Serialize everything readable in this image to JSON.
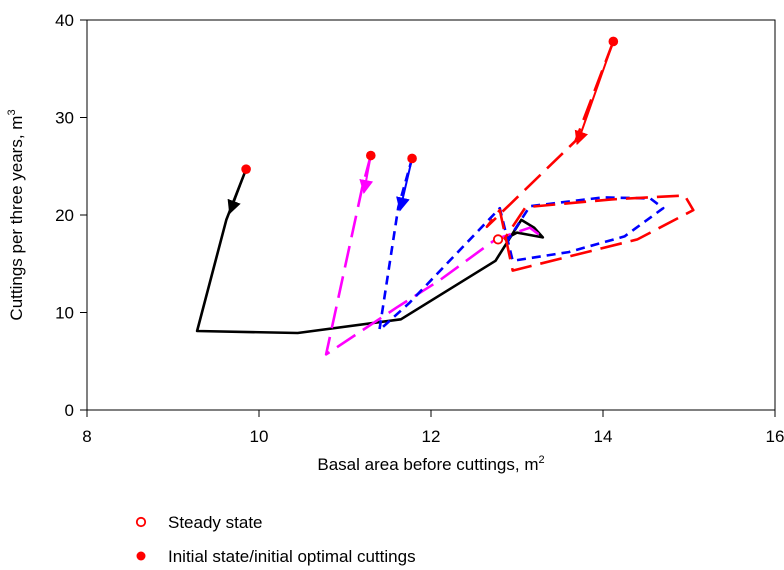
{
  "chart_data": {
    "type": "line",
    "title": "",
    "xlabel": "Basal area before cuttings, m",
    "xlabel_sup": "2",
    "ylabel": "Cuttings per three years, m",
    "ylabel_sup": "3",
    "xlim": [
      8,
      16
    ],
    "ylim": [
      0,
      40
    ],
    "x_ticks": [
      8,
      10,
      12,
      14,
      16
    ],
    "y_ticks": [
      0,
      10,
      20,
      30,
      40
    ],
    "grid": false,
    "legend_placement": "bottom-left",
    "series": [
      {
        "color": "#000000",
        "dash": "solid",
        "points": [
          [
            9.85,
            24.7
          ],
          [
            9.62,
            19.5
          ],
          [
            9.28,
            8.1
          ],
          [
            10.45,
            7.9
          ],
          [
            11.65,
            9.3
          ],
          [
            12.75,
            15.3
          ],
          [
            13.05,
            19.5
          ],
          [
            13.2,
            18.7
          ],
          [
            13.3,
            17.7
          ],
          [
            13.0,
            18.2
          ],
          [
            12.85,
            17.5
          ]
        ],
        "arrows": [
          [
            [
              9.85,
              24.7
            ],
            [
              9.66,
              20.2
            ]
          ]
        ]
      },
      {
        "color": "#ff00ff",
        "dash": "long",
        "points": [
          [
            11.3,
            26.1
          ],
          [
            11.2,
            22.8
          ],
          [
            10.78,
            5.7
          ],
          [
            11.6,
            10.5
          ],
          [
            12.1,
            13.3
          ],
          [
            12.75,
            17.5
          ],
          [
            13.15,
            18.7
          ],
          [
            13.3,
            17.7
          ]
        ],
        "arrows": [
          [
            [
              11.3,
              26.1
            ],
            [
              11.22,
              22.3
            ]
          ]
        ]
      },
      {
        "color": "#0000ff",
        "dash": "short",
        "points": [
          [
            11.78,
            25.8
          ],
          [
            11.62,
            20.8
          ],
          [
            11.4,
            8.2
          ],
          [
            11.75,
            11.0
          ],
          [
            12.8,
            20.7
          ],
          [
            12.95,
            15.3
          ],
          [
            13.6,
            16.2
          ],
          [
            14.25,
            17.8
          ],
          [
            14.7,
            20.7
          ],
          [
            14.55,
            21.7
          ],
          [
            14.0,
            21.8
          ],
          [
            13.15,
            20.9
          ],
          [
            12.9,
            17.5
          ]
        ],
        "arrows": [
          [
            [
              11.78,
              25.8
            ],
            [
              11.64,
              20.5
            ]
          ]
        ]
      },
      {
        "color": "#ff0000",
        "dash": "long",
        "points": [
          [
            14.12,
            37.8
          ],
          [
            13.68,
            27.6
          ],
          [
            12.65,
            18.8
          ],
          [
            12.8,
            20.5
          ],
          [
            12.95,
            14.3
          ],
          [
            14.4,
            17.5
          ],
          [
            15.05,
            20.5
          ],
          [
            14.95,
            22.0
          ],
          [
            14.1,
            21.6
          ],
          [
            13.1,
            20.8
          ],
          [
            12.85,
            17.5
          ]
        ],
        "arrows": [
          [
            [
              14.12,
              37.8
            ],
            [
              13.7,
              27.3
            ]
          ]
        ]
      }
    ],
    "steady_state_point": [
      12.78,
      17.5
    ],
    "initial_state_points": [
      [
        9.85,
        24.7
      ],
      [
        11.3,
        26.1
      ],
      [
        11.78,
        25.8
      ],
      [
        14.12,
        37.8
      ]
    ],
    "legend": [
      {
        "marker": "open-circle",
        "color": "#ff0000",
        "label": "Steady state"
      },
      {
        "marker": "filled-circle",
        "color": "#ff0000",
        "label": "Initial state/initial optimal cuttings"
      }
    ]
  }
}
